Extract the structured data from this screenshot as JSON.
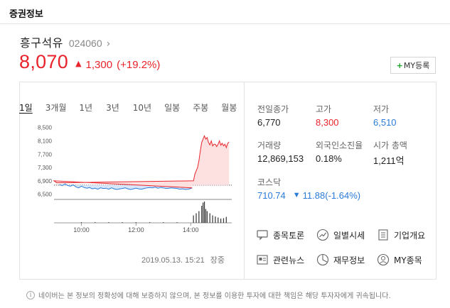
{
  "section_title": "증권정보",
  "stock": {
    "name": "흥구석유",
    "code": "024060",
    "chevron": "›",
    "price": "8,070",
    "direction_symbol": "▲",
    "change": "1,300",
    "change_rate": "(+19.2%)"
  },
  "my_button": {
    "plus": "+",
    "label": "MY등록"
  },
  "tabs": [
    "1일",
    "3개월",
    "1년",
    "3년",
    "10년",
    "일봉",
    "주봉",
    "월봉"
  ],
  "active_tab": 0,
  "timestamp": {
    "datetime": "2019.05.13. 15:21",
    "status": "장중"
  },
  "stats": {
    "prev_close_label": "전일종가",
    "prev_close": "6,770",
    "high_label": "고가",
    "high": "8,300",
    "low_label": "저가",
    "low": "6,510",
    "volume_label": "거래량",
    "volume": "12,869,153",
    "foreign_label": "외국인소진율",
    "foreign": "0.18%",
    "market_cap_label": "시가 총액",
    "market_cap": "1,211억"
  },
  "kosdaq": {
    "label": "코스닥",
    "value": "710.74",
    "direction_symbol": "▼",
    "change": "11.88",
    "change_rate": "(-1.64%)"
  },
  "links": [
    {
      "label": "종목토론",
      "icon": "speech-bubble-icon"
    },
    {
      "label": "일별시세",
      "icon": "trend-line-icon"
    },
    {
      "label": "기업개요",
      "icon": "document-list-icon"
    },
    {
      "label": "관련뉴스",
      "icon": "news-icon"
    },
    {
      "label": "재무정보",
      "icon": "pie-chart-icon"
    },
    {
      "label": "MY종목",
      "icon": "user-icon"
    }
  ],
  "notice": "네이버는 본 정보의 정확성에 대해 보증하지 않으며, 본 정보를 이용한 투자에 대한 책임은 해당 투자자에게 귀속됩니다.",
  "colors": {
    "up": "#e8232b",
    "down": "#2a7bd8",
    "neutral": "#222222"
  },
  "chart_data": {
    "type": "line",
    "y_ticks": [
      "8,500",
      "8,100",
      "7,700",
      "7,300",
      "6,900",
      "6,500"
    ],
    "y_tick_values": [
      8500,
      8100,
      7700,
      7300,
      6900,
      6500
    ],
    "x_ticks": [
      "10:00",
      "12:00",
      "14:00"
    ],
    "x_tick_values": [
      600,
      720,
      840
    ],
    "ylim": [
      6300,
      8600
    ],
    "xlim": [
      540,
      930
    ],
    "reference_line": 6770,
    "price_series": [
      [
        540,
        6900
      ],
      [
        546,
        6840
      ],
      [
        552,
        6790
      ],
      [
        558,
        6760
      ],
      [
        564,
        6810
      ],
      [
        570,
        6760
      ],
      [
        576,
        6740
      ],
      [
        582,
        6780
      ],
      [
        588,
        6720
      ],
      [
        594,
        6690
      ],
      [
        600,
        6740
      ],
      [
        606,
        6700
      ],
      [
        612,
        6680
      ],
      [
        618,
        6700
      ],
      [
        624,
        6660
      ],
      [
        630,
        6680
      ],
      [
        636,
        6650
      ],
      [
        642,
        6690
      ],
      [
        648,
        6670
      ],
      [
        654,
        6680
      ],
      [
        660,
        6650
      ],
      [
        666,
        6690
      ],
      [
        672,
        6660
      ],
      [
        678,
        6640
      ],
      [
        684,
        6660
      ],
      [
        690,
        6670
      ],
      [
        696,
        6690
      ],
      [
        702,
        6660
      ],
      [
        708,
        6640
      ],
      [
        714,
        6660
      ],
      [
        720,
        6680
      ],
      [
        726,
        6660
      ],
      [
        732,
        6650
      ],
      [
        738,
        6670
      ],
      [
        744,
        6690
      ],
      [
        750,
        6700
      ],
      [
        756,
        6690
      ],
      [
        762,
        6710
      ],
      [
        768,
        6680
      ],
      [
        774,
        6700
      ],
      [
        780,
        6690
      ],
      [
        786,
        6670
      ],
      [
        792,
        6680
      ],
      [
        798,
        6690
      ],
      [
        804,
        6680
      ],
      [
        810,
        6670
      ],
      [
        816,
        6650
      ],
      [
        822,
        6660
      ],
      [
        828,
        6640
      ],
      [
        834,
        6650
      ],
      [
        840,
        6670
      ],
      [
        843,
        6690
      ],
      [
        846,
        6900
      ],
      [
        849,
        7100
      ],
      [
        852,
        7200
      ],
      [
        855,
        7300
      ],
      [
        858,
        7500
      ],
      [
        861,
        7800
      ],
      [
        864,
        8050
      ],
      [
        867,
        8150
      ],
      [
        870,
        8250
      ],
      [
        873,
        8150
      ],
      [
        876,
        8200
      ],
      [
        879,
        8050
      ],
      [
        882,
        7980
      ],
      [
        885,
        8100
      ],
      [
        888,
        7950
      ],
      [
        891,
        8000
      ],
      [
        894,
        8000
      ],
      [
        897,
        7930
      ],
      [
        900,
        8000
      ],
      [
        903,
        8100
      ],
      [
        906,
        7970
      ],
      [
        909,
        8030
      ],
      [
        912,
        7950
      ],
      [
        915,
        8000
      ],
      [
        918,
        7900
      ],
      [
        921,
        8020
      ],
      [
        924,
        8070
      ]
    ],
    "volume_bars": [
      [
        600,
        0.03
      ],
      [
        630,
        0.03
      ],
      [
        660,
        0.03
      ],
      [
        690,
        0.03
      ],
      [
        720,
        0.03
      ],
      [
        750,
        0.03
      ],
      [
        780,
        0.03
      ],
      [
        810,
        0.03
      ],
      [
        846,
        0.35
      ],
      [
        852,
        0.45
      ],
      [
        858,
        0.55
      ],
      [
        864,
        0.8
      ],
      [
        867,
        0.95
      ],
      [
        870,
        1.0
      ],
      [
        873,
        0.65
      ],
      [
        876,
        0.55
      ],
      [
        882,
        0.45
      ],
      [
        888,
        0.35
      ],
      [
        894,
        0.3
      ],
      [
        900,
        0.25
      ],
      [
        906,
        0.2
      ],
      [
        912,
        0.22
      ],
      [
        918,
        0.28
      ]
    ]
  }
}
